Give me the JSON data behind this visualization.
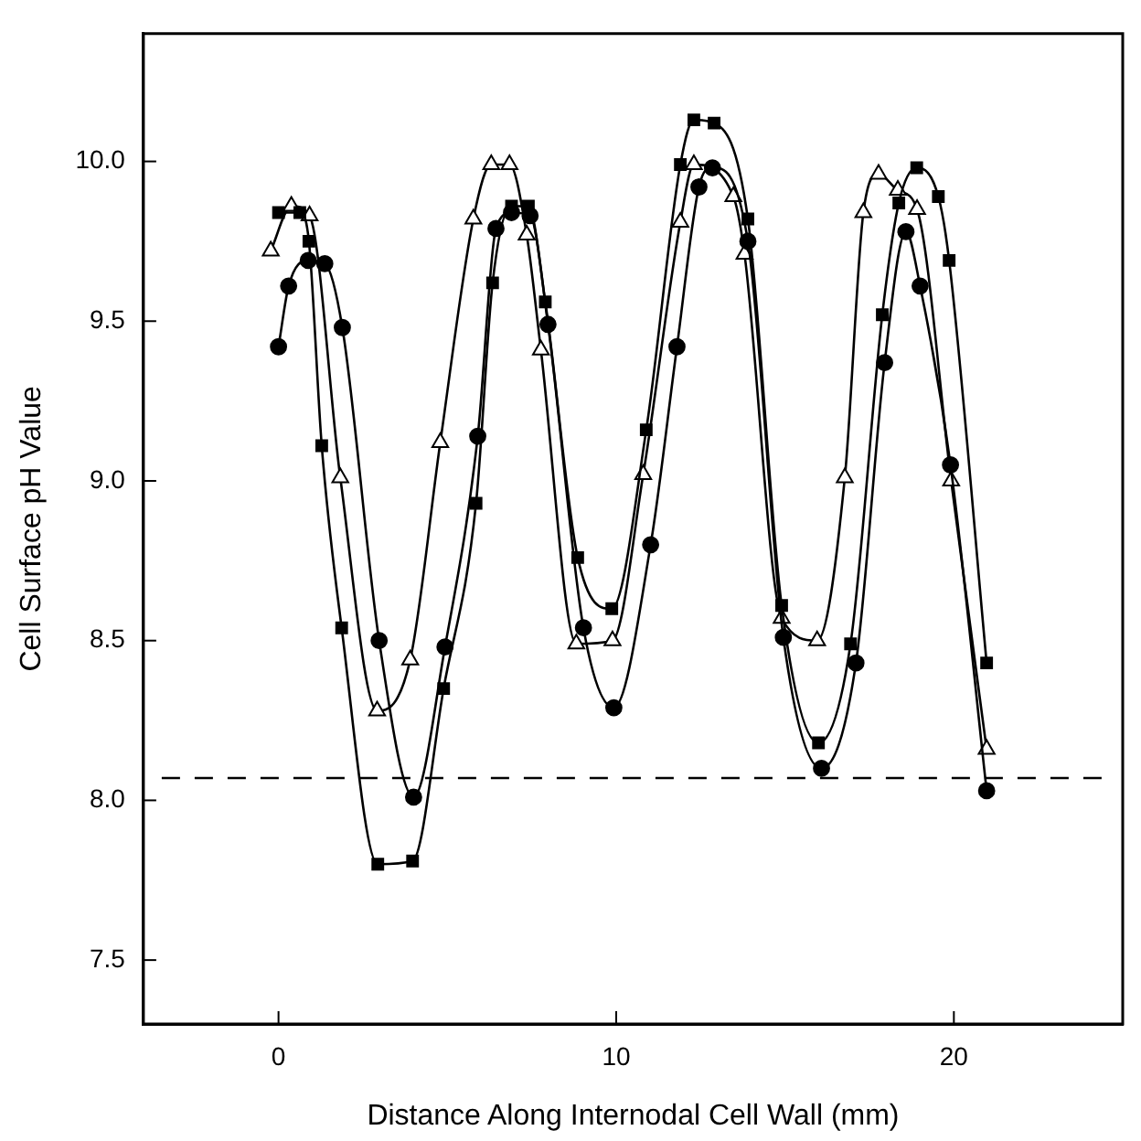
{
  "chart_data": {
    "type": "line",
    "xlabel": "Distance Along Internodal Cell Wall (mm)",
    "ylabel": "Cell Surface pH Value",
    "xlim": [
      -4,
      25
    ],
    "xticks": [
      0,
      10,
      20
    ],
    "ylim": [
      7.3,
      10.4
    ],
    "yticks": [
      7.5,
      {
        "value": 8,
        "label": "8.0"
      },
      8.5,
      {
        "value": 9,
        "label": "9.0"
      },
      9.5,
      {
        "value": 10,
        "label": "10.0"
      }
    ],
    "grid": false,
    "legend": false,
    "line_style": "solid",
    "ref_lines": [
      {
        "axis": "y",
        "value": 8.07,
        "color": "#000000",
        "line_style": "dashed"
      }
    ],
    "series": [
      {
        "color": "#000000",
        "marker": "square",
        "x": [
          0,
          0.63,
          0.9,
          1.28,
          1.87,
          2.94,
          3.97,
          4.89,
          5.85,
          6.34,
          6.9,
          7.4,
          7.9,
          8.86,
          9.87,
          10.89,
          11.9,
          12.3,
          12.9,
          13.9,
          14.9,
          15.99,
          16.94,
          17.88,
          18.37,
          18.9,
          19.54,
          19.86,
          20.97
        ],
        "values": [
          9.84,
          9.84,
          9.75,
          9.11,
          8.54,
          7.8,
          7.81,
          8.35,
          8.93,
          9.62,
          9.86,
          9.86,
          9.56,
          8.76,
          8.6,
          9.16,
          9.99,
          10.13,
          10.12,
          9.82,
          8.61,
          8.18,
          8.49,
          9.52,
          9.87,
          9.98,
          9.89,
          9.69,
          8.43
        ]
      },
      {
        "color": "#000000",
        "marker": "circle",
        "x": [
          0,
          0.3,
          0.88,
          1.37,
          1.89,
          2.98,
          4,
          4.93,
          5.9,
          6.44,
          6.9,
          7.45,
          7.98,
          9.03,
          9.93,
          11.02,
          11.8,
          12.45,
          12.85,
          13.9,
          14.95,
          16.08,
          17.1,
          17.95,
          18.58,
          19,
          19.9,
          20.97
        ],
        "values": [
          9.42,
          9.61,
          9.69,
          9.68,
          9.48,
          8.5,
          8.01,
          8.48,
          9.14,
          9.79,
          9.84,
          9.83,
          9.49,
          8.54,
          8.29,
          8.8,
          9.42,
          9.92,
          9.98,
          9.75,
          8.51,
          8.1,
          8.43,
          9.37,
          9.78,
          9.61,
          9.05,
          8.03
        ]
      },
      {
        "color": "#000000",
        "marker": "triangle",
        "x": [
          -0.23,
          0.38,
          0.92,
          1.83,
          2.92,
          3.9,
          4.79,
          5.77,
          6.3,
          6.84,
          7.35,
          7.77,
          8.82,
          9.89,
          10.8,
          11.9,
          12.3,
          13.47,
          13.8,
          14.9,
          15.95,
          16.77,
          17.32,
          17.77,
          18.34,
          18.91,
          19.92,
          20.97
        ],
        "values": [
          9.72,
          9.86,
          9.83,
          9.01,
          8.28,
          8.44,
          9.12,
          9.82,
          9.99,
          9.99,
          9.77,
          9.41,
          8.49,
          8.5,
          9.02,
          9.81,
          9.99,
          9.89,
          9.71,
          8.57,
          8.5,
          9.01,
          9.84,
          9.96,
          9.91,
          9.85,
          9,
          8.16
        ]
      }
    ]
  }
}
